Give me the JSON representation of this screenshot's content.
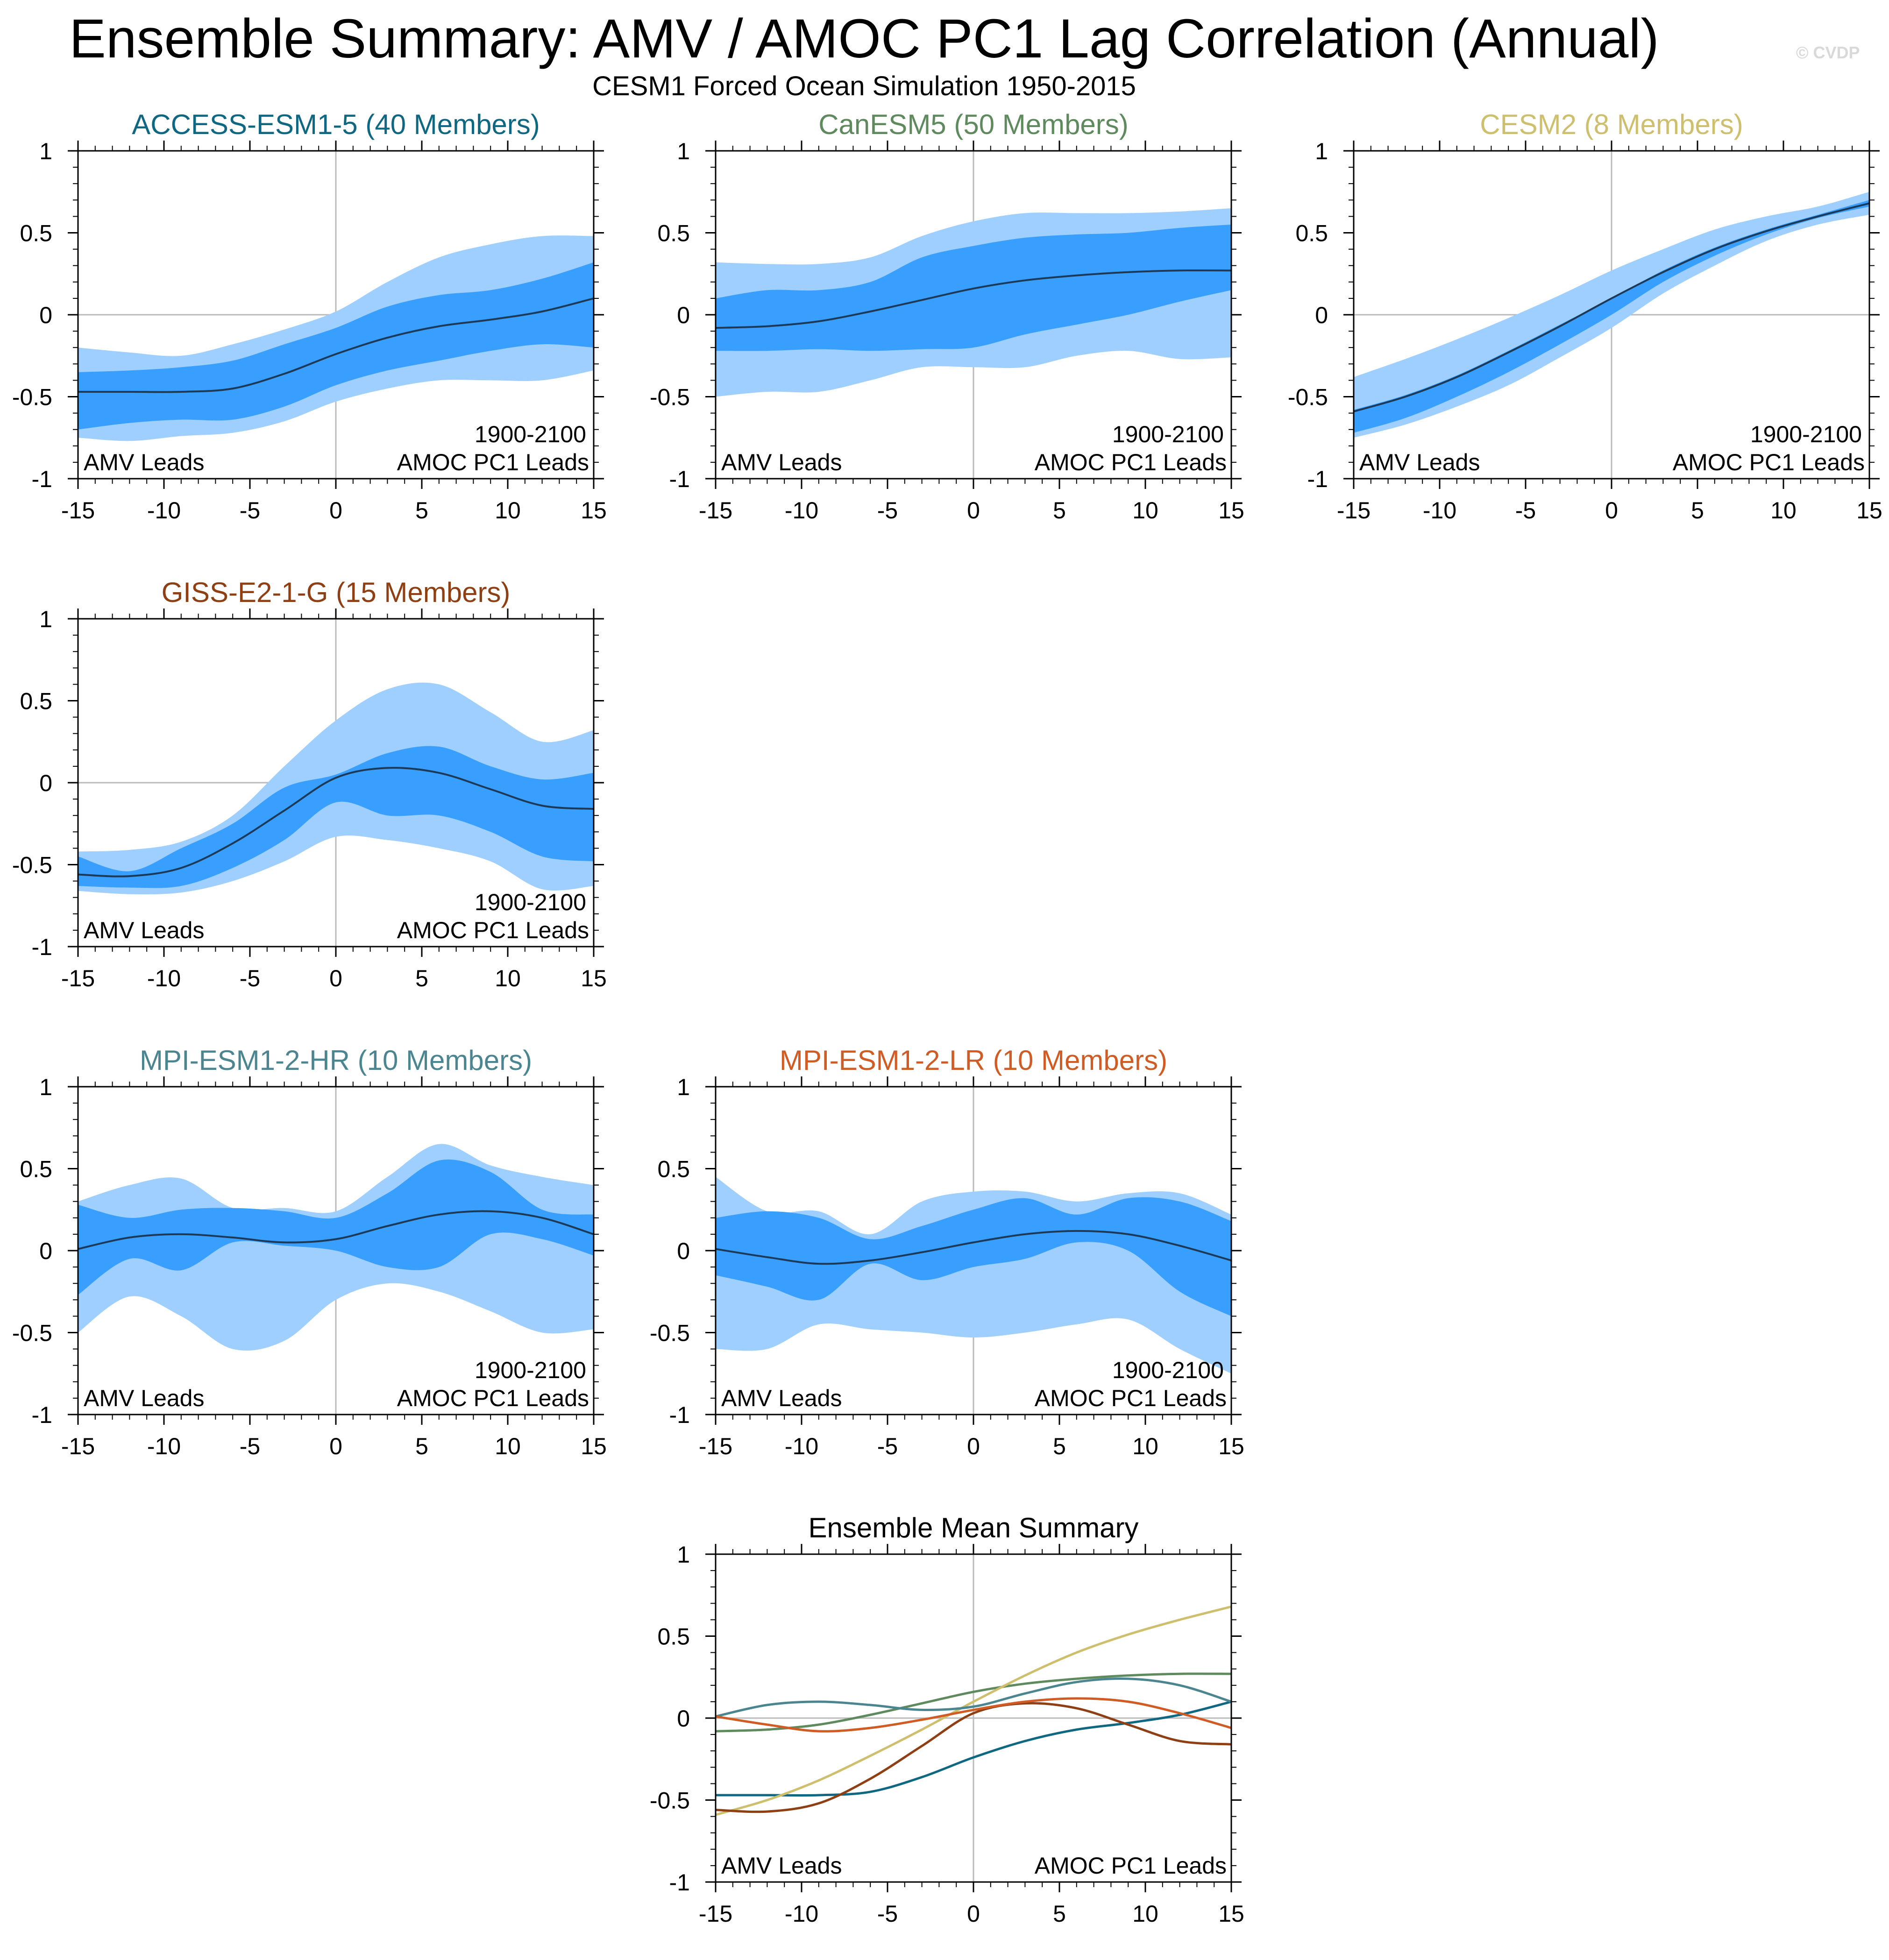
{
  "title": "Ensemble Summary: AMV / AMOC PC1 Lag Correlation (Annual)",
  "subtitle": "CESM1 Forced Ocean Simulation 1950-2015",
  "watermark": "© CVDP",
  "chart_data": [
    {
      "type": "area",
      "title": "ACCESS-ESM1-5 (40 Members)",
      "title_color": "#0f6782",
      "x": [
        -15,
        -12,
        -9,
        -6,
        -3,
        0,
        3,
        6,
        9,
        12,
        15
      ],
      "mean": [
        -0.47,
        -0.47,
        -0.47,
        -0.45,
        -0.36,
        -0.24,
        -0.14,
        -0.07,
        -0.03,
        0.02,
        0.1
      ],
      "inner_low": [
        -0.7,
        -0.66,
        -0.64,
        -0.64,
        -0.56,
        -0.43,
        -0.34,
        -0.28,
        -0.22,
        -0.18,
        -0.2
      ],
      "inner_high": [
        -0.35,
        -0.34,
        -0.32,
        -0.28,
        -0.18,
        -0.08,
        0.05,
        0.12,
        0.15,
        0.22,
        0.32
      ],
      "outer_low": [
        -0.75,
        -0.77,
        -0.74,
        -0.72,
        -0.65,
        -0.53,
        -0.45,
        -0.4,
        -0.4,
        -0.4,
        -0.34
      ],
      "outer_high": [
        -0.2,
        -0.23,
        -0.25,
        -0.18,
        -0.09,
        0.02,
        0.2,
        0.35,
        0.43,
        0.48,
        0.48
      ],
      "xlim": [
        -15,
        15
      ],
      "ylim": [
        -1,
        1
      ],
      "xticks": [
        "-15",
        "-10",
        "-5",
        "0",
        "5",
        "10",
        "15"
      ],
      "yticks": [
        "1",
        "0.5",
        "0",
        "-0.5",
        "-1"
      ],
      "period": "1900-2100",
      "left_label": "AMV Leads",
      "right_label": "AMOC PC1 Leads"
    },
    {
      "type": "area",
      "title": "CanESM5 (50 Members)",
      "title_color": "#5e8a5e",
      "x": [
        -15,
        -12,
        -9,
        -6,
        -3,
        0,
        3,
        6,
        9,
        12,
        15
      ],
      "mean": [
        -0.08,
        -0.07,
        -0.04,
        0.02,
        0.09,
        0.16,
        0.21,
        0.24,
        0.26,
        0.27,
        0.27
      ],
      "inner_low": [
        -0.22,
        -0.22,
        -0.21,
        -0.22,
        -0.21,
        -0.2,
        -0.12,
        -0.06,
        0.0,
        0.08,
        0.15
      ],
      "inner_high": [
        0.1,
        0.15,
        0.15,
        0.2,
        0.35,
        0.42,
        0.47,
        0.49,
        0.5,
        0.53,
        0.55
      ],
      "outer_low": [
        -0.5,
        -0.47,
        -0.47,
        -0.4,
        -0.32,
        -0.32,
        -0.32,
        -0.25,
        -0.22,
        -0.27,
        -0.26
      ],
      "outer_high": [
        0.32,
        0.31,
        0.31,
        0.35,
        0.48,
        0.57,
        0.62,
        0.62,
        0.62,
        0.63,
        0.65
      ],
      "xlim": [
        -15,
        15
      ],
      "ylim": [
        -1,
        1
      ],
      "xticks": [
        "-15",
        "-10",
        "-5",
        "0",
        "5",
        "10",
        "15"
      ],
      "yticks": [
        "1",
        "0.5",
        "0",
        "-0.5",
        "-1"
      ],
      "period": "1900-2100",
      "left_label": "AMV Leads",
      "right_label": "AMOC PC1 Leads"
    },
    {
      "type": "area",
      "title": "CESM2 (8 Members)",
      "title_color": "#cdbf6e",
      "x": [
        -15,
        -12,
        -9,
        -6,
        -3,
        0,
        3,
        6,
        9,
        12,
        15
      ],
      "mean": [
        -0.59,
        -0.5,
        -0.38,
        -0.23,
        -0.07,
        0.1,
        0.26,
        0.4,
        0.51,
        0.6,
        0.68
      ],
      "inner_low": [
        -0.72,
        -0.63,
        -0.5,
        -0.35,
        -0.18,
        0.0,
        0.2,
        0.36,
        0.49,
        0.59,
        0.66
      ],
      "inner_high": [
        -0.58,
        -0.49,
        -0.37,
        -0.22,
        -0.06,
        0.1,
        0.27,
        0.41,
        0.52,
        0.61,
        0.7
      ],
      "outer_low": [
        -0.75,
        -0.67,
        -0.56,
        -0.43,
        -0.26,
        -0.08,
        0.13,
        0.3,
        0.45,
        0.55,
        0.61
      ],
      "outer_high": [
        -0.38,
        -0.27,
        -0.15,
        -0.02,
        0.12,
        0.27,
        0.4,
        0.52,
        0.6,
        0.66,
        0.75
      ],
      "xlim": [
        -15,
        15
      ],
      "ylim": [
        -1,
        1
      ],
      "xticks": [
        "-15",
        "-10",
        "-5",
        "0",
        "5",
        "10",
        "15"
      ],
      "yticks": [
        "1",
        "0.5",
        "0",
        "-0.5",
        "-1"
      ],
      "period": "1900-2100",
      "left_label": "AMV Leads",
      "right_label": "AMOC PC1 Leads"
    },
    {
      "type": "area",
      "title": "GISS-E2-1-G (15 Members)",
      "title_color": "#8e3f14",
      "x": [
        -15,
        -12,
        -9,
        -6,
        -3,
        0,
        3,
        6,
        9,
        12,
        15
      ],
      "mean": [
        -0.56,
        -0.57,
        -0.52,
        -0.37,
        -0.17,
        0.03,
        0.09,
        0.06,
        -0.04,
        -0.14,
        -0.16
      ],
      "inner_low": [
        -0.63,
        -0.64,
        -0.63,
        -0.52,
        -0.35,
        -0.12,
        -0.2,
        -0.2,
        -0.3,
        -0.45,
        -0.48
      ],
      "inner_high": [
        -0.45,
        -0.54,
        -0.4,
        -0.25,
        -0.03,
        0.05,
        0.18,
        0.22,
        0.1,
        0.02,
        0.06
      ],
      "outer_low": [
        -0.66,
        -0.68,
        -0.67,
        -0.6,
        -0.48,
        -0.33,
        -0.35,
        -0.4,
        -0.48,
        -0.65,
        -0.63
      ],
      "outer_high": [
        -0.42,
        -0.41,
        -0.36,
        -0.2,
        0.1,
        0.38,
        0.57,
        0.6,
        0.43,
        0.25,
        0.32
      ],
      "xlim": [
        -15,
        15
      ],
      "ylim": [
        -1,
        1
      ],
      "xticks": [
        "-15",
        "-10",
        "-5",
        "0",
        "5",
        "10",
        "15"
      ],
      "yticks": [
        "1",
        "0.5",
        "0",
        "-0.5",
        "-1"
      ],
      "period": "1900-2100",
      "left_label": "AMV Leads",
      "right_label": "AMOC PC1 Leads"
    },
    {
      "type": "area",
      "title": "MPI-ESM1-2-HR (10 Members)",
      "title_color": "#4b8690",
      "x": [
        -15,
        -12,
        -9,
        -6,
        -3,
        0,
        3,
        6,
        9,
        12,
        15
      ],
      "mean": [
        0.01,
        0.08,
        0.1,
        0.08,
        0.05,
        0.07,
        0.15,
        0.22,
        0.24,
        0.2,
        0.1
      ],
      "inner_low": [
        -0.27,
        -0.05,
        -0.12,
        0.05,
        0.03,
        0.0,
        -0.1,
        -0.1,
        0.1,
        0.07,
        -0.03
      ],
      "inner_high": [
        0.28,
        0.2,
        0.25,
        0.26,
        0.24,
        0.2,
        0.35,
        0.55,
        0.48,
        0.25,
        0.22
      ],
      "outer_low": [
        -0.5,
        -0.28,
        -0.4,
        -0.6,
        -0.55,
        -0.3,
        -0.2,
        -0.25,
        -0.37,
        -0.5,
        -0.48
      ],
      "outer_high": [
        0.3,
        0.4,
        0.44,
        0.26,
        0.26,
        0.24,
        0.45,
        0.65,
        0.52,
        0.45,
        0.4
      ],
      "xlim": [
        -15,
        15
      ],
      "ylim": [
        -1,
        1
      ],
      "xticks": [
        "-15",
        "-10",
        "-5",
        "0",
        "5",
        "10",
        "15"
      ],
      "yticks": [
        "1",
        "0.5",
        "0",
        "-0.5",
        "-1"
      ],
      "period": "1900-2100",
      "left_label": "AMV Leads",
      "right_label": "AMOC PC1 Leads"
    },
    {
      "type": "area",
      "title": "MPI-ESM1-2-LR (10 Members)",
      "title_color": "#d05c25",
      "x": [
        -15,
        -12,
        -9,
        -6,
        -3,
        0,
        3,
        6,
        9,
        12,
        15
      ],
      "mean": [
        0.01,
        -0.04,
        -0.08,
        -0.06,
        -0.01,
        0.05,
        0.1,
        0.12,
        0.1,
        0.03,
        -0.06
      ],
      "inner_low": [
        -0.15,
        -0.22,
        -0.3,
        -0.08,
        -0.18,
        -0.1,
        -0.05,
        0.05,
        0.0,
        -0.25,
        -0.4
      ],
      "inner_high": [
        0.2,
        0.24,
        0.2,
        0.07,
        0.15,
        0.25,
        0.32,
        0.22,
        0.32,
        0.3,
        0.18
      ],
      "outer_low": [
        -0.6,
        -0.6,
        -0.45,
        -0.48,
        -0.5,
        -0.53,
        -0.5,
        -0.45,
        -0.42,
        -0.6,
        -0.75
      ],
      "outer_high": [
        0.45,
        0.24,
        0.24,
        0.1,
        0.3,
        0.36,
        0.36,
        0.3,
        0.35,
        0.35,
        0.22
      ],
      "xlim": [
        -15,
        15
      ],
      "ylim": [
        -1,
        1
      ],
      "xticks": [
        "-15",
        "-10",
        "-5",
        "0",
        "5",
        "10",
        "15"
      ],
      "yticks": [
        "1",
        "0.5",
        "0",
        "-0.5",
        "-1"
      ],
      "period": "1900-2100",
      "left_label": "AMV Leads",
      "right_label": "AMOC PC1 Leads"
    },
    {
      "type": "line",
      "title": "Ensemble Mean Summary",
      "title_color": "#000000",
      "x": [
        -15,
        -12,
        -9,
        -6,
        -3,
        0,
        3,
        6,
        9,
        12,
        15
      ],
      "series": [
        {
          "name": "ACCESS-ESM1-5",
          "color": "#0f6782",
          "values": [
            -0.47,
            -0.47,
            -0.47,
            -0.45,
            -0.36,
            -0.24,
            -0.14,
            -0.07,
            -0.03,
            0.02,
            0.1
          ]
        },
        {
          "name": "CanESM5",
          "color": "#5e8a5e",
          "values": [
            -0.08,
            -0.07,
            -0.04,
            0.02,
            0.09,
            0.16,
            0.21,
            0.24,
            0.26,
            0.27,
            0.27
          ]
        },
        {
          "name": "CESM2",
          "color": "#cdbf6e",
          "values": [
            -0.59,
            -0.5,
            -0.38,
            -0.23,
            -0.07,
            0.1,
            0.26,
            0.4,
            0.51,
            0.6,
            0.68
          ]
        },
        {
          "name": "GISS-E2-1-G",
          "color": "#8e3f14",
          "values": [
            -0.56,
            -0.57,
            -0.52,
            -0.37,
            -0.17,
            0.03,
            0.09,
            0.06,
            -0.04,
            -0.14,
            -0.16
          ]
        },
        {
          "name": "MPI-ESM1-2-HR",
          "color": "#4b8690",
          "values": [
            0.01,
            0.08,
            0.1,
            0.08,
            0.05,
            0.07,
            0.15,
            0.22,
            0.24,
            0.2,
            0.1
          ]
        },
        {
          "name": "MPI-ESM1-2-LR",
          "color": "#d05c25",
          "values": [
            0.01,
            -0.04,
            -0.08,
            -0.06,
            -0.01,
            0.05,
            0.1,
            0.12,
            0.1,
            0.03,
            -0.06
          ]
        }
      ],
      "xlim": [
        -15,
        15
      ],
      "ylim": [
        -1,
        1
      ],
      "xticks": [
        "-15",
        "-10",
        "-5",
        "0",
        "5",
        "10",
        "15"
      ],
      "yticks": [
        "1",
        "0.5",
        "0",
        "-0.5",
        "-1"
      ],
      "left_label": "AMV Leads",
      "right_label": "AMOC PC1 Leads"
    }
  ]
}
